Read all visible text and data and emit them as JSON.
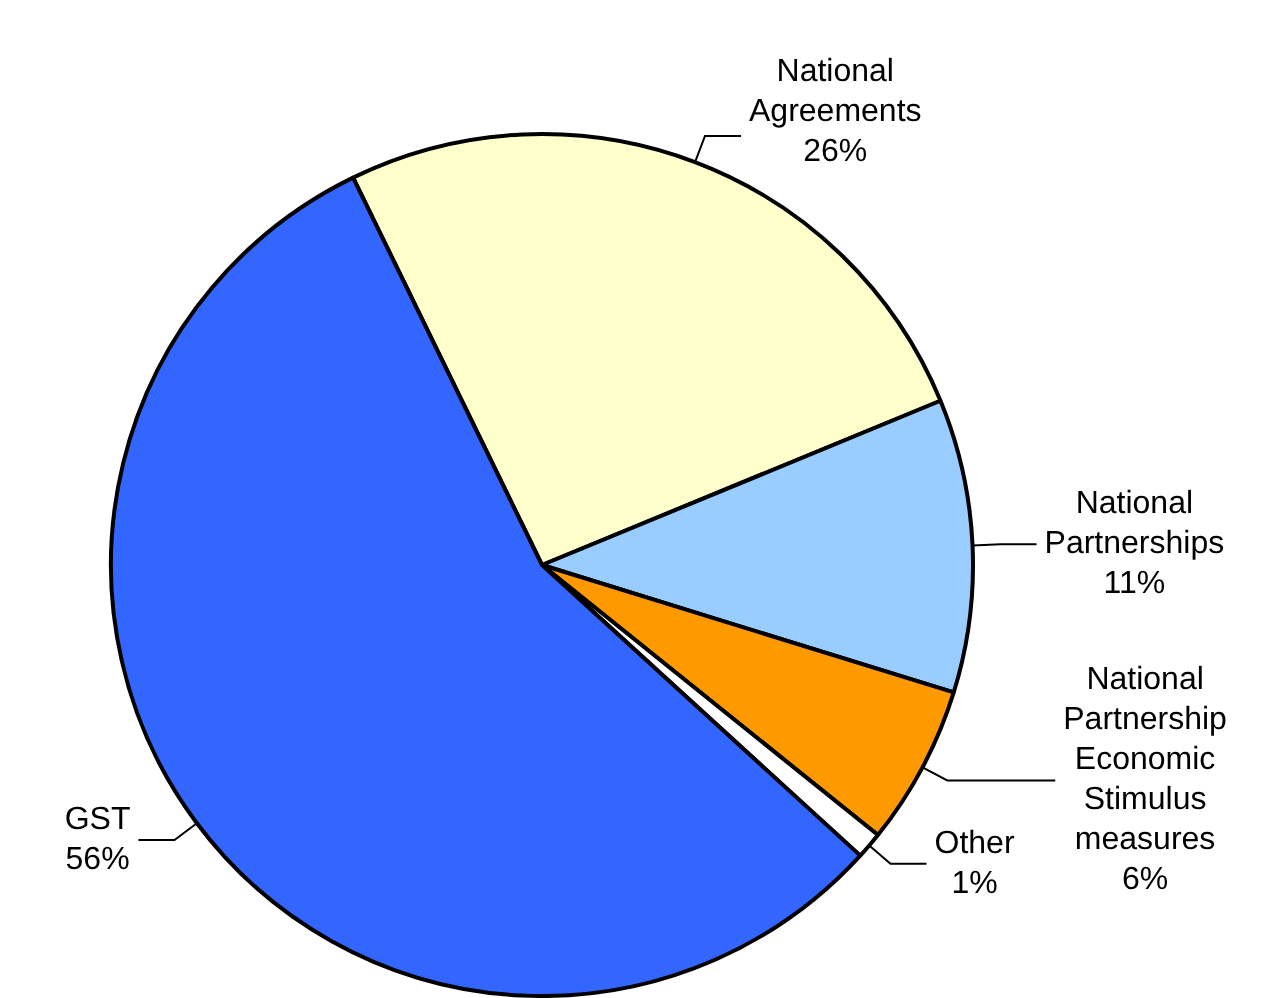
{
  "chart_data": {
    "type": "pie",
    "categories": [
      "National Agreements",
      "National Partnerships",
      "National Partnership Economic Stimulus measures",
      "Other",
      "GST"
    ],
    "values": [
      26,
      11,
      6,
      1,
      56
    ],
    "colors": [
      "#ffffcc",
      "#99ccff",
      "#ff9900",
      "#ffffff",
      "#3366ff"
    ],
    "value_labels": [
      "26%",
      "11%",
      "6%",
      "1%",
      "56%"
    ],
    "legend": false
  }
}
